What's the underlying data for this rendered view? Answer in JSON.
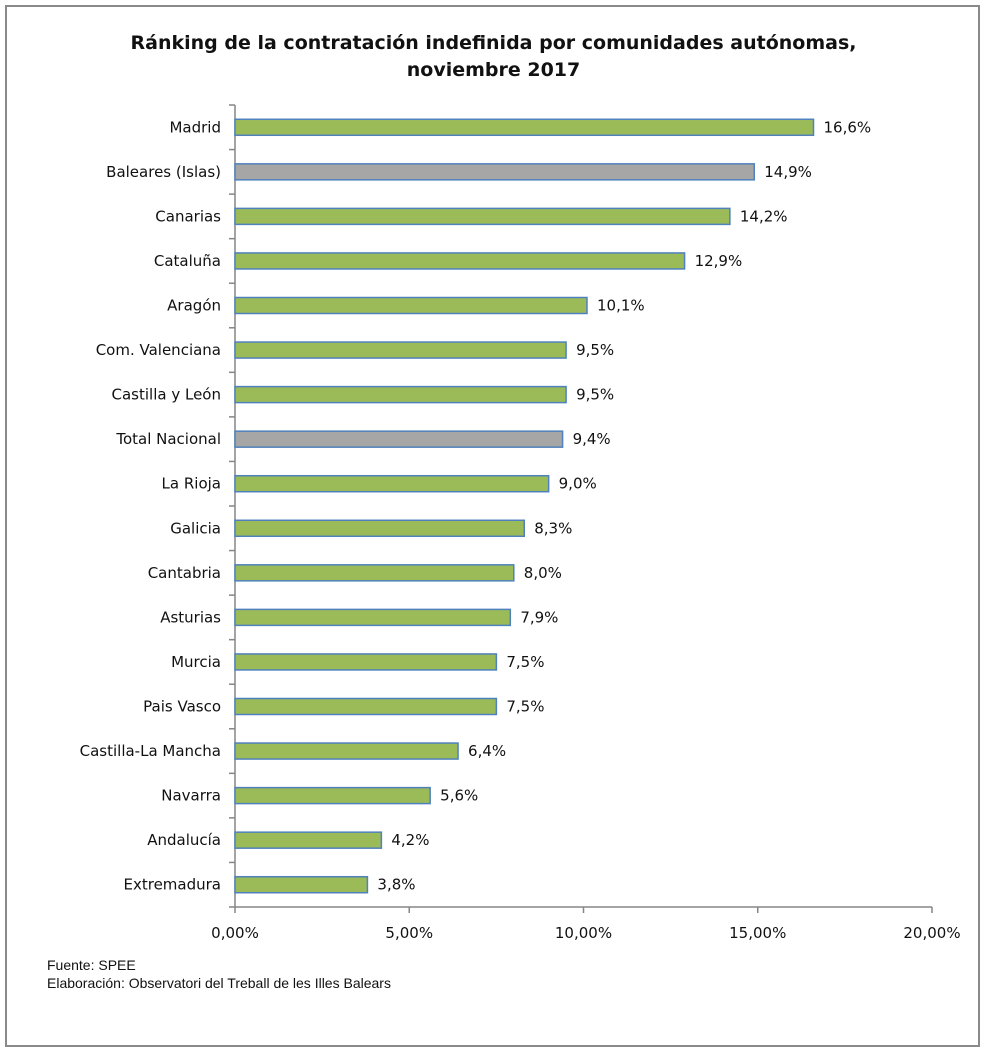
{
  "chart_data": {
    "type": "bar",
    "orientation": "horizontal",
    "title": "Ránking de la contratación indefinida por comunidades autónomas,",
    "subtitle": "noviembre 2017",
    "categories": [
      "Madrid",
      "Baleares (Islas)",
      "Canarias",
      "Cataluña",
      "Aragón",
      "Com. Valenciana",
      "Castilla y León",
      "Total Nacional",
      "La Rioja",
      "Galicia",
      "Cantabria",
      "Asturias",
      "Murcia",
      "Pais Vasco",
      "Castilla-La Mancha",
      "Navarra",
      "Andalucía",
      "Extremadura"
    ],
    "values": [
      16.6,
      14.9,
      14.2,
      12.9,
      10.1,
      9.5,
      9.5,
      9.4,
      9.0,
      8.3,
      8.0,
      7.9,
      7.5,
      7.5,
      6.4,
      5.6,
      4.2,
      3.8
    ],
    "value_labels": [
      "16,6%",
      "14,9%",
      "14,2%",
      "12,9%",
      "10,1%",
      "9,5%",
      "9,5%",
      "9,4%",
      "9,0%",
      "8,3%",
      "8,0%",
      "7,9%",
      "7,5%",
      "7,5%",
      "6,4%",
      "5,6%",
      "4,2%",
      "3,8%"
    ],
    "highlight": [
      "Baleares (Islas)",
      "Total Nacional"
    ],
    "xlim": [
      0,
      20
    ],
    "xticks": [
      0,
      5,
      10,
      15,
      20
    ],
    "xtick_labels": [
      "0,00%",
      "5,00%",
      "10,00%",
      "15,00%",
      "20,00%"
    ],
    "xlabel": "",
    "ylabel": "",
    "grid": false,
    "legend": "none",
    "colors": {
      "bar": "#9bbb59",
      "bar_highlight": "#a6a6a6",
      "bar_border": "#4f81bd",
      "axis": "#868686",
      "text": "#111111"
    }
  },
  "footer": {
    "source": "Fuente: SPEE",
    "elaboration": "Elaboración:  Observatori del Treball de les Illes Balears"
  }
}
